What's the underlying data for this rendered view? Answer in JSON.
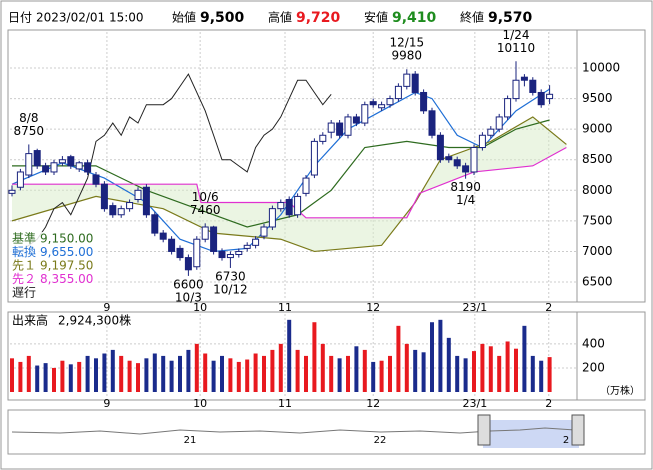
{
  "chart_data": {
    "type": "candlestick",
    "header": {
      "date_label": "日付",
      "date": "2023/02/01 15:00",
      "fields": [
        {
          "label": "始値",
          "value": "9,500",
          "color": "#000000"
        },
        {
          "label": "高値",
          "value": "9,720",
          "color": "#e8191f"
        },
        {
          "label": "安値",
          "value": "9,410",
          "color": "#1e8c1e"
        },
        {
          "label": "終値",
          "value": "9,570",
          "color": "#000000"
        }
      ]
    },
    "open": [
      7950,
      8050,
      8250,
      8650,
      8400,
      8300,
      8450,
      8550,
      8350,
      8450,
      8250,
      8100,
      7750,
      7600,
      7700,
      7850,
      8050,
      7600,
      7300,
      7200,
      7050,
      6900,
      6750,
      7200,
      7400,
      7000,
      6900,
      6950,
      7050,
      7100,
      7250,
      7400,
      7700,
      7850,
      7600,
      7950,
      8250,
      8800,
      8950,
      9100,
      8900,
      9200,
      9100,
      9450,
      9350,
      9400,
      9500,
      9700,
      9900,
      9600,
      9300,
      8900,
      8550,
      8500,
      8400,
      8300,
      8700,
      8900,
      9000,
      9200,
      9500,
      9850,
      9800,
      9600,
      9500
    ],
    "high": [
      8080,
      8350,
      8750,
      8680,
      8450,
      8500,
      8560,
      8580,
      8480,
      8500,
      8300,
      8150,
      7800,
      7750,
      7850,
      8050,
      8100,
      7650,
      7350,
      7250,
      7100,
      6950,
      7250,
      7460,
      7420,
      7050,
      7000,
      7050,
      7150,
      7250,
      7450,
      7750,
      7850,
      7900,
      7950,
      8250,
      8850,
      8950,
      9150,
      9150,
      9250,
      9250,
      9450,
      9500,
      9450,
      9550,
      9750,
      9980,
      9950,
      9650,
      9350,
      8950,
      8600,
      8550,
      8450,
      8750,
      8950,
      9050,
      9250,
      9550,
      10110,
      9900,
      9850,
      9650,
      9720
    ],
    "low": [
      7900,
      8000,
      8200,
      8350,
      8250,
      8250,
      8400,
      8350,
      8300,
      8250,
      8050,
      7650,
      7550,
      7550,
      7650,
      7800,
      7550,
      7250,
      7150,
      6950,
      6850,
      6600,
      6700,
      7150,
      6950,
      6850,
      6730,
      6900,
      7000,
      7050,
      7200,
      7350,
      7650,
      7550,
      7550,
      7900,
      8200,
      8750,
      8850,
      8850,
      8850,
      9050,
      9050,
      9350,
      9300,
      9350,
      9450,
      9650,
      9550,
      9250,
      8850,
      8450,
      8450,
      8350,
      8190,
      8250,
      8650,
      8850,
      8950,
      9150,
      9450,
      9700,
      9550,
      9350,
      9410
    ],
    "close": [
      8000,
      8300,
      8600,
      8400,
      8300,
      8450,
      8500,
      8400,
      8450,
      8300,
      8100,
      7700,
      7600,
      7700,
      7800,
      8000,
      7600,
      7300,
      7200,
      7000,
      6900,
      6700,
      7200,
      7400,
      7000,
      6900,
      6950,
      7000,
      7100,
      7200,
      7400,
      7700,
      7800,
      7600,
      7900,
      8200,
      8800,
      8900,
      9100,
      8900,
      9200,
      9100,
      9400,
      9400,
      9400,
      9500,
      9700,
      9900,
      9600,
      9300,
      8900,
      8500,
      8500,
      8400,
      8300,
      8700,
      8900,
      9000,
      9200,
      9500,
      9800,
      9800,
      9600,
      9400,
      9570
    ],
    "up_color": "#ffffff",
    "down_color": "#1a237e",
    "ylim": [
      6206,
      10589
    ],
    "yticks": [
      6500,
      7000,
      7500,
      8000,
      8500,
      9000,
      9500,
      10000
    ],
    "xticks": [
      {
        "value": 11.3,
        "label": "9"
      },
      {
        "value": 22.4,
        "label": "10"
      },
      {
        "value": 32.5,
        "label": "11"
      },
      {
        "value": 43,
        "label": "12"
      },
      {
        "value": 55.1,
        "label": "23/1"
      },
      {
        "value": 63.9,
        "label": "2"
      }
    ],
    "annotations": [
      {
        "date": "8/8",
        "value": 8750
      },
      {
        "date": "10/6",
        "value": 7460
      },
      {
        "date": "10/3",
        "value": 6600
      },
      {
        "date": "10/12",
        "value": 6730
      },
      {
        "date": "12/15",
        "value": 9980
      },
      {
        "date": "1/24",
        "value": 10110
      },
      {
        "date": "1/4",
        "value": 8190
      }
    ],
    "lines": [
      {
        "name": "基準",
        "value": "9,150.00",
        "color": "#2e6b1f",
        "x": [
          0,
          10,
          16,
          22,
          28,
          34,
          38,
          42,
          47,
          52,
          56,
          60,
          64
        ],
        "values": [
          8400,
          8400,
          8000,
          7700,
          7400,
          7600,
          8000,
          8700,
          8800,
          8700,
          8700,
          9000,
          9150
        ]
      },
      {
        "name": "転換",
        "value": "9,655.00",
        "color": "#1f6fd6",
        "x": [
          0,
          6,
          11,
          16,
          20,
          24,
          28,
          32,
          36,
          40,
          44,
          48,
          50,
          53,
          56,
          60,
          64
        ],
        "values": [
          8100,
          8450,
          8200,
          7800,
          7200,
          7000,
          7050,
          7600,
          8400,
          9000,
          9300,
          9600,
          9500,
          8900,
          8700,
          9300,
          9655
        ]
      },
      {
        "name": "先１",
        "value": "9,197.50",
        "color": "#7a7a1a",
        "x": [
          0,
          10,
          18,
          24,
          32,
          36,
          44,
          48,
          51,
          57,
          62,
          66
        ],
        "values": [
          7500,
          7900,
          7700,
          7300,
          7200,
          7000,
          7100,
          7800,
          8500,
          8800,
          9200,
          8750
        ]
      },
      {
        "name": "先２",
        "value": "8,355.00",
        "color": "#e030d0",
        "x": [
          0,
          22,
          22.5,
          33,
          35,
          47,
          48.5,
          55,
          62,
          66
        ],
        "values": [
          8100,
          8100,
          7800,
          7800,
          7550,
          7550,
          7950,
          8300,
          8400,
          8700
        ]
      }
    ],
    "lagging": {
      "name": "遅行",
      "color": "#222222"
    },
    "volume": {
      "label": "出来高",
      "total": "2,924,300株",
      "unit": "（万株）",
      "up_color": "#e8191f",
      "down_color": "#1a2b8c",
      "values": [
        280,
        250,
        300,
        220,
        240,
        200,
        260,
        230,
        250,
        300,
        280,
        320,
        350,
        300,
        260,
        240,
        280,
        320,
        300,
        260,
        300,
        350,
        400,
        320,
        260,
        300,
        280,
        250,
        270,
        320,
        300,
        350,
        400,
        600,
        350,
        300,
        580,
        400,
        300,
        280,
        300,
        380,
        350,
        250,
        260,
        300,
        550,
        400,
        350,
        330,
        580,
        600,
        450,
        300,
        280,
        340,
        400,
        380,
        300,
        420,
        360,
        550,
        300,
        260,
        290
      ],
      "ylim": [
        0,
        665
      ],
      "yticks": [
        200,
        400
      ]
    },
    "navigator": {
      "labels": [
        "21",
        "22",
        "2"
      ]
    }
  }
}
